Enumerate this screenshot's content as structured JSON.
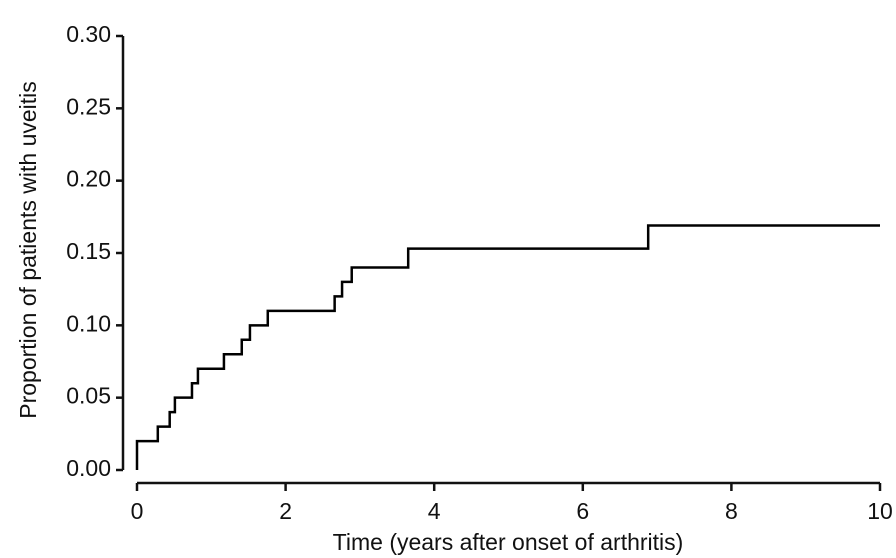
{
  "chart_data": {
    "type": "step",
    "x_label": "Time (years after onset of arthritis)",
    "y_label": "Proportion of patients with uveitis",
    "x": [
      0,
      0,
      0.28,
      0.44,
      0.51,
      0.74,
      0.82,
      1.17,
      1.41,
      1.52,
      1.76,
      2.66,
      2.76,
      2.89,
      3.65,
      6.88,
      10
    ],
    "values": [
      0,
      0.02,
      0.03,
      0.04,
      0.05,
      0.06,
      0.07,
      0.08,
      0.09,
      0.1,
      0.11,
      0.12,
      0.13,
      0.14,
      0.153,
      0.169,
      0.169
    ],
    "color": "#000000",
    "xlim": [
      0,
      10
    ],
    "xticks": [
      0,
      2,
      4,
      6,
      8,
      10
    ],
    "ylim": [
      0,
      0.3
    ],
    "yticks": [
      {
        "value": 0,
        "label": "0.00"
      },
      {
        "value": 0.05,
        "label": "0.05"
      },
      {
        "value": 0.1,
        "label": "0.10"
      },
      {
        "value": 0.15,
        "label": "0.15"
      },
      {
        "value": 0.2,
        "label": "0.20"
      },
      {
        "value": 0.25,
        "label": "0.25"
      },
      {
        "value": 0.3,
        "label": "0.30"
      }
    ]
  }
}
